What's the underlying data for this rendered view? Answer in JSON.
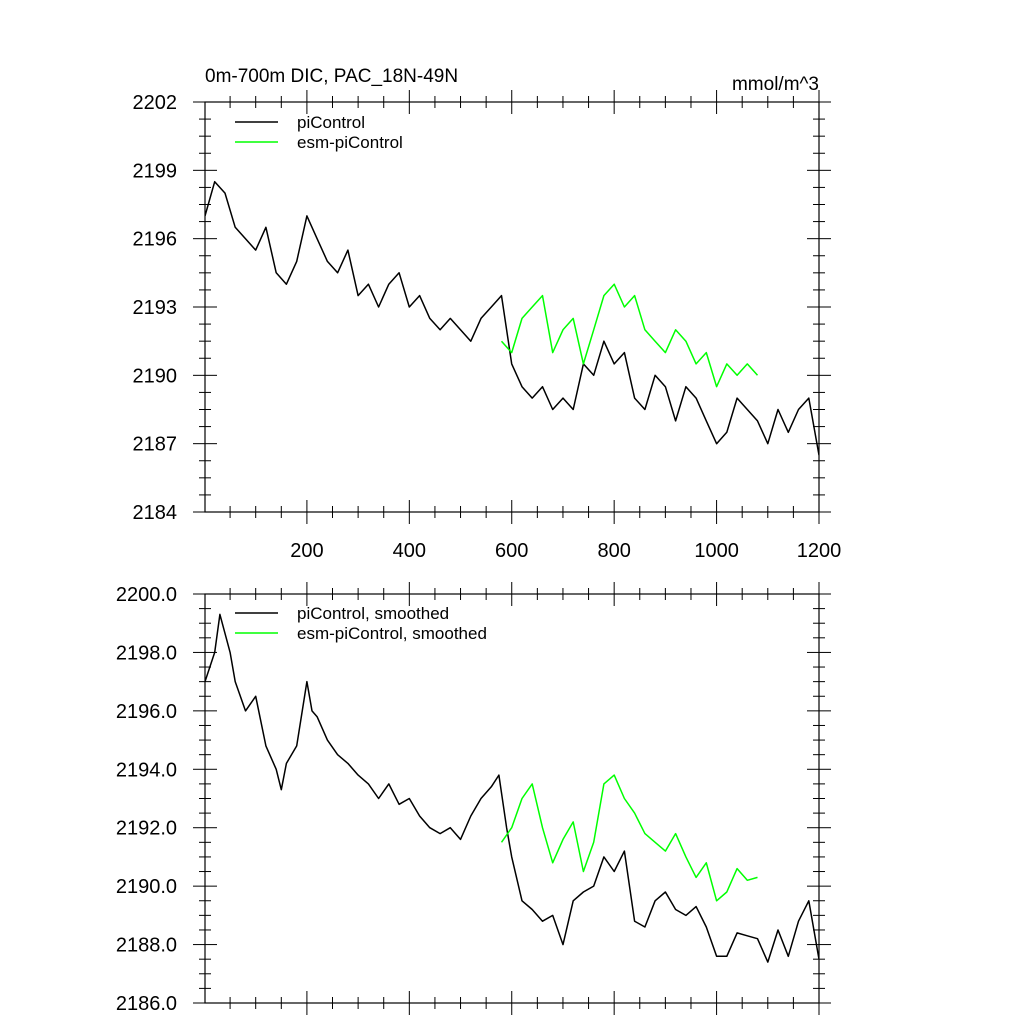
{
  "chart_data": [
    {
      "type": "line",
      "title": "0m-700m DIC, PAC_18N-49N",
      "units": "mmol/m^3",
      "xlim": [
        1,
        1200
      ],
      "ylim": [
        2184,
        2202
      ],
      "xticks": [
        200,
        400,
        600,
        800,
        1000,
        1200
      ],
      "yticks": [
        2184,
        2187,
        2190,
        2193,
        2196,
        2199,
        2202
      ],
      "ytick_labels": [
        "2184",
        "2187",
        "2190",
        "2193",
        "2196",
        "2199",
        "2202"
      ],
      "legend_position": "top-left",
      "series": [
        {
          "name": "piControl",
          "color": "#000000",
          "x": [
            1,
            20,
            40,
            60,
            80,
            100,
            120,
            140,
            160,
            180,
            200,
            220,
            240,
            260,
            280,
            300,
            320,
            340,
            360,
            380,
            400,
            420,
            440,
            460,
            480,
            500,
            520,
            540,
            560,
            580,
            600,
            620,
            640,
            660,
            680,
            700,
            720,
            740,
            760,
            780,
            800,
            820,
            840,
            860,
            880,
            900,
            920,
            940,
            960,
            980,
            1000,
            1020,
            1040,
            1060,
            1080,
            1100,
            1120,
            1140,
            1160,
            1180,
            1200
          ],
          "y": [
            2197.0,
            2198.5,
            2198.0,
            2196.5,
            2196.0,
            2195.5,
            2196.5,
            2194.5,
            2194.0,
            2195.0,
            2197.0,
            2196.0,
            2195.0,
            2194.5,
            2195.5,
            2193.5,
            2194.0,
            2193.0,
            2194.0,
            2194.5,
            2193.0,
            2193.5,
            2192.5,
            2192.0,
            2192.5,
            2192.0,
            2191.5,
            2192.5,
            2193.0,
            2193.5,
            2190.5,
            2189.5,
            2189.0,
            2189.5,
            2188.5,
            2189.0,
            2188.5,
            2190.5,
            2190.0,
            2191.5,
            2190.5,
            2191.0,
            2189.0,
            2188.5,
            2190.0,
            2189.5,
            2188.0,
            2189.5,
            2189.0,
            2188.0,
            2187.0,
            2187.5,
            2189.0,
            2188.5,
            2188.0,
            2187.0,
            2188.5,
            2187.5,
            2188.5,
            2189.0,
            2186.5
          ]
        },
        {
          "name": "esm-piControl",
          "color": "#00ff00",
          "x": [
            580,
            600,
            620,
            640,
            660,
            680,
            700,
            720,
            740,
            760,
            780,
            800,
            820,
            840,
            860,
            880,
            900,
            920,
            940,
            960,
            980,
            1000,
            1020,
            1040,
            1060,
            1080
          ],
          "y": [
            2191.5,
            2191.0,
            2192.5,
            2193.0,
            2193.5,
            2191.0,
            2192.0,
            2192.5,
            2190.5,
            2192.0,
            2193.5,
            2194.0,
            2193.0,
            2193.5,
            2192.0,
            2191.5,
            2191.0,
            2192.0,
            2191.5,
            2190.5,
            2191.0,
            2189.5,
            2190.5,
            2190.0,
            2190.5,
            2190.0
          ]
        }
      ]
    },
    {
      "type": "line",
      "title": "",
      "xlim": [
        1,
        1200
      ],
      "ylim": [
        2186.0,
        2200.0
      ],
      "xticks": [
        200,
        400,
        600,
        800,
        1000,
        1200
      ],
      "yticks": [
        2186.0,
        2188.0,
        2190.0,
        2192.0,
        2194.0,
        2196.0,
        2198.0,
        2200.0
      ],
      "ytick_labels": [
        "2186.0",
        "2188.0",
        "2190.0",
        "2192.0",
        "2194.0",
        "2196.0",
        "2198.0",
        "2200.0"
      ],
      "legend_position": "top-left",
      "series": [
        {
          "name": "piControl, smoothed",
          "color": "#000000",
          "x": [
            1,
            20,
            30,
            50,
            60,
            80,
            100,
            120,
            140,
            150,
            160,
            180,
            200,
            210,
            220,
            240,
            260,
            280,
            300,
            320,
            340,
            360,
            380,
            400,
            420,
            440,
            460,
            480,
            500,
            520,
            540,
            560,
            575,
            590,
            600,
            620,
            640,
            660,
            680,
            700,
            720,
            740,
            760,
            780,
            800,
            820,
            840,
            860,
            880,
            900,
            920,
            940,
            960,
            980,
            1000,
            1020,
            1040,
            1060,
            1080,
            1100,
            1120,
            1140,
            1160,
            1180,
            1200
          ],
          "y": [
            2197.0,
            2198.0,
            2199.3,
            2198.0,
            2197.0,
            2196.0,
            2196.5,
            2194.8,
            2194.0,
            2193.3,
            2194.2,
            2194.8,
            2197.0,
            2196.0,
            2195.8,
            2195.0,
            2194.5,
            2194.2,
            2193.8,
            2193.5,
            2193.0,
            2193.5,
            2192.8,
            2193.0,
            2192.4,
            2192.0,
            2191.8,
            2192.0,
            2191.6,
            2192.4,
            2193.0,
            2193.4,
            2193.8,
            2192.0,
            2191.0,
            2189.5,
            2189.2,
            2188.8,
            2189.0,
            2188.0,
            2189.5,
            2189.8,
            2190.0,
            2191.0,
            2190.5,
            2191.2,
            2188.8,
            2188.6,
            2189.5,
            2189.8,
            2189.2,
            2189.0,
            2189.3,
            2188.6,
            2187.6,
            2187.6,
            2188.4,
            2188.3,
            2188.2,
            2187.4,
            2188.5,
            2187.6,
            2188.8,
            2189.5,
            2187.5
          ]
        },
        {
          "name": "esm-piControl, smoothed",
          "color": "#00ff00",
          "x": [
            580,
            600,
            620,
            640,
            660,
            680,
            700,
            720,
            740,
            760,
            780,
            800,
            820,
            840,
            860,
            880,
            900,
            920,
            940,
            960,
            980,
            1000,
            1020,
            1040,
            1060,
            1080
          ],
          "y": [
            2191.5,
            2192.0,
            2193.0,
            2193.5,
            2192.0,
            2190.8,
            2191.6,
            2192.2,
            2190.5,
            2191.5,
            2193.5,
            2193.8,
            2193.0,
            2192.5,
            2191.8,
            2191.5,
            2191.2,
            2191.8,
            2191.0,
            2190.3,
            2190.8,
            2189.5,
            2189.8,
            2190.6,
            2190.2,
            2190.3
          ]
        }
      ]
    }
  ]
}
